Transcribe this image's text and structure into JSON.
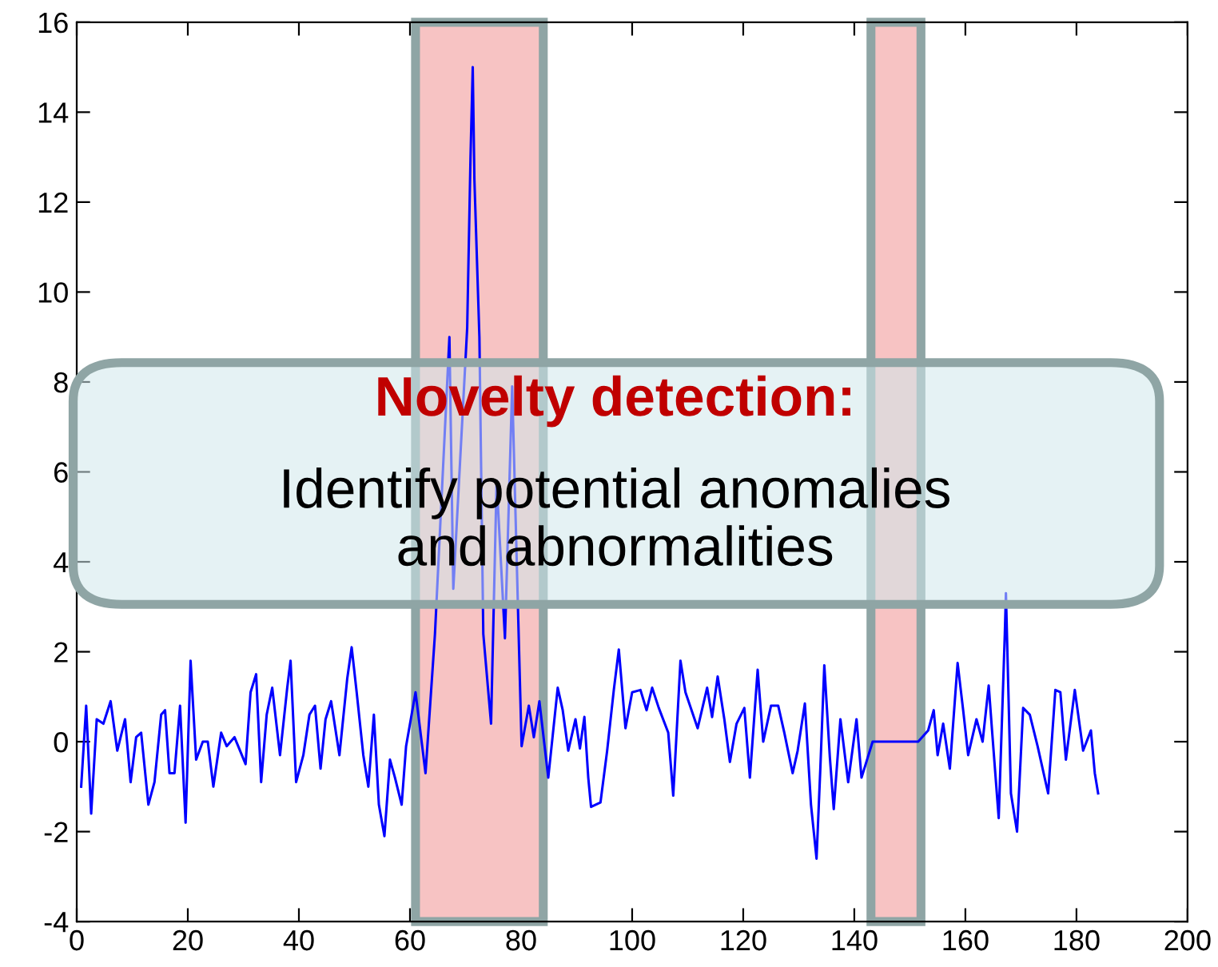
{
  "chart_data": {
    "type": "line",
    "xlim": [
      0,
      200
    ],
    "ylim": [
      -4,
      16
    ],
    "xticks": [
      0,
      20,
      40,
      60,
      80,
      100,
      120,
      140,
      160,
      180,
      200
    ],
    "yticks": [
      -4,
      -2,
      0,
      2,
      4,
      6,
      8,
      10,
      12,
      14,
      16
    ],
    "grid": false,
    "legend": false,
    "marker": "none",
    "line_style": "solid",
    "bands": [
      {
        "axis": "x",
        "from": 61,
        "to": 84,
        "color": "#f7c3c3"
      },
      {
        "axis": "x",
        "from": 143,
        "to": 152,
        "color": "#f7c3c3"
      }
    ],
    "annotations": [
      "Novelty detection:",
      "Identify potential anomalies\nand abnormalities"
    ],
    "series": [
      {
        "color": "#0000ff",
        "x": [
          0.8,
          1.7,
          2.6,
          3.6,
          4.8,
          6.1,
          7.3,
          8.7,
          9.7,
          10.7,
          11.6,
          12.9,
          14.0,
          15.2,
          15.9,
          16.7,
          17.6,
          18.6,
          19.6,
          20.5,
          21.5,
          22.7,
          23.6,
          24.6,
          26.0,
          27.0,
          28.4,
          30.4,
          31.3,
          32.3,
          33.2,
          34.2,
          35.2,
          36.6,
          37.9,
          38.5,
          39.5,
          40.8,
          41.9,
          42.9,
          43.9,
          44.8,
          45.8,
          47.3,
          48.7,
          49.5,
          50.4,
          51.6,
          52.5,
          53.5,
          54.4,
          55.4,
          56.4,
          57.3,
          58.5,
          59.3,
          61.0,
          62.8,
          64.5,
          67.1,
          67.8,
          70.3,
          70.9,
          71.3,
          71.6,
          72.5,
          73.2,
          74.6,
          75.6,
          77.1,
          78.4,
          79.5,
          80.1,
          81.4,
          82.3,
          83.3,
          84.9,
          86.6,
          87.5,
          88.5,
          89.8,
          90.6,
          91.4,
          92.1,
          92.6,
          94.3,
          95.5,
          96.7,
          97.6,
          98.8,
          100.0,
          101.5,
          102.6,
          103.6,
          104.8,
          106.5,
          107.4,
          108.7,
          109.6,
          111.8,
          113.5,
          114.4,
          115.4,
          116.6,
          117.6,
          118.8,
          120.2,
          121.2,
          122.6,
          123.6,
          125.0,
          126.3,
          127.4,
          128.9,
          129.8,
          131.1,
          132.2,
          133.2,
          133.9,
          134.6,
          135.6,
          136.3,
          137.5,
          138.9,
          140.4,
          141.3,
          143.3,
          151.5,
          153.3,
          154.3,
          155.0,
          156.0,
          157.2,
          158.6,
          159.6,
          160.5,
          162.0,
          163.1,
          164.2,
          164.8,
          166.0,
          167.1,
          167.3,
          168.2,
          169.3,
          170.4,
          171.6,
          173.0,
          174.9,
          176.2,
          177.1,
          178.1,
          179.7,
          181.2,
          182.6,
          183.3,
          183.9
        ],
        "values": [
          -1.0,
          0.8,
          -1.6,
          0.5,
          0.4,
          0.9,
          -0.2,
          0.5,
          -0.9,
          0.1,
          0.2,
          -1.4,
          -0.9,
          0.6,
          0.7,
          -0.7,
          -0.7,
          0.8,
          -1.8,
          1.8,
          -0.4,
          0.0,
          0.0,
          -1.0,
          0.2,
          -0.1,
          0.1,
          -0.5,
          1.1,
          1.5,
          -0.9,
          0.6,
          1.2,
          -0.3,
          1.2,
          1.8,
          -0.9,
          -0.3,
          0.6,
          0.8,
          -0.6,
          0.5,
          0.9,
          -0.3,
          1.4,
          2.1,
          1.1,
          -0.3,
          -1.0,
          0.6,
          -1.4,
          -2.1,
          -0.4,
          -0.8,
          -1.4,
          -0.1,
          1.1,
          -0.7,
          2.4,
          9.0,
          3.4,
          9.2,
          13.0,
          15.0,
          12.5,
          9.0,
          2.4,
          0.4,
          5.8,
          2.3,
          7.9,
          2.7,
          -0.1,
          0.8,
          0.1,
          0.9,
          -0.8,
          1.2,
          0.7,
          -0.2,
          0.5,
          -0.15,
          0.55,
          -0.8,
          -1.45,
          -1.35,
          -0.2,
          1.15,
          2.05,
          0.3,
          1.1,
          1.15,
          0.7,
          1.2,
          0.75,
          0.2,
          -1.2,
          1.8,
          1.1,
          0.3,
          1.2,
          0.55,
          1.45,
          0.5,
          -0.45,
          0.4,
          0.75,
          -0.8,
          1.6,
          0.0,
          0.8,
          0.8,
          0.2,
          -0.7,
          -0.2,
          0.85,
          -1.4,
          -2.6,
          -0.55,
          1.7,
          -0.35,
          -1.5,
          0.5,
          -0.9,
          0.5,
          -0.8,
          0.0,
          0.0,
          0.25,
          0.7,
          -0.3,
          0.4,
          -0.6,
          1.75,
          0.7,
          -0.3,
          0.5,
          0.0,
          1.25,
          0.25,
          -1.7,
          2.4,
          3.3,
          -1.15,
          -2.0,
          0.75,
          0.6,
          -0.1,
          -1.15,
          1.15,
          1.1,
          -0.4,
          1.15,
          -0.2,
          0.25,
          -0.7,
          -1.15
        ]
      }
    ]
  }
}
